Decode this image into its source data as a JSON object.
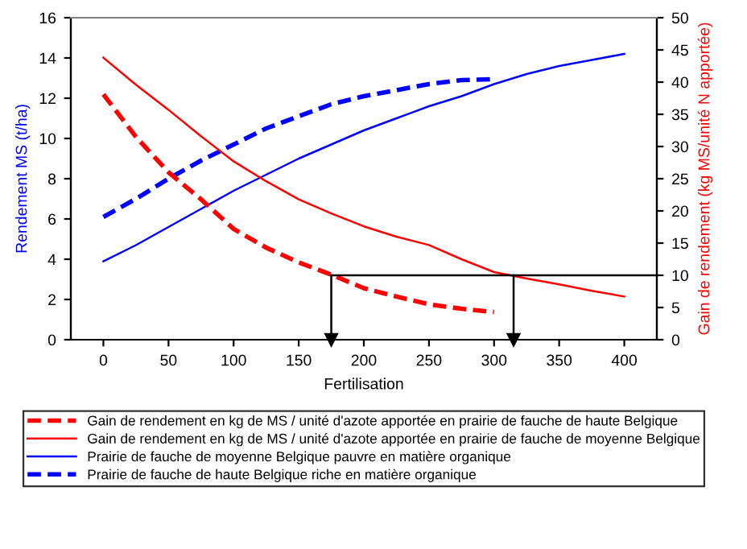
{
  "chart_data": {
    "type": "line",
    "xlabel": "Fertilisation",
    "ylabel": "Rendement MS (t/ha)",
    "y2label": "Gain de rendement (kg MS/unité N apportée)",
    "xlim": [
      -25,
      425
    ],
    "xticks": [
      0,
      50,
      100,
      150,
      200,
      250,
      300,
      350,
      400
    ],
    "ylim": [
      0,
      16
    ],
    "yticks": [
      0,
      2,
      4,
      6,
      8,
      10,
      12,
      14,
      16
    ],
    "y2lim": [
      0,
      50
    ],
    "y2ticks": [
      0,
      5,
      10,
      15,
      20,
      25,
      30,
      35,
      40,
      45,
      50
    ],
    "grid": false,
    "legend": "bottom",
    "marker": "none",
    "series": [
      {
        "name": "Gain de rendement en kg de MS / unité d'azote apportée en prairie de fauche de haute Belgique",
        "color": "#ff0000",
        "axis": "y2",
        "line_style": "dashed",
        "x": [
          0,
          25,
          50,
          75,
          100,
          125,
          150,
          175,
          200,
          225,
          250,
          275,
          300
        ],
        "values": [
          38.1,
          31.5,
          26.0,
          21.8,
          17.2,
          14.3,
          12.0,
          10.1,
          8.0,
          6.7,
          5.5,
          4.8,
          4.3
        ]
      },
      {
        "name": "Gain de rendement en kg de MS / unité d'azote apportée en prairie de fauche de moyenne Belgique",
        "color": "#ff0000",
        "axis": "y2",
        "line_style": "solid",
        "x": [
          0,
          25,
          50,
          75,
          100,
          125,
          150,
          175,
          200,
          225,
          250,
          275,
          300,
          325,
          350,
          375,
          400
        ],
        "values": [
          43.8,
          39.6,
          35.7,
          31.6,
          27.7,
          24.6,
          21.8,
          19.6,
          17.6,
          16.0,
          14.7,
          12.5,
          10.5,
          9.5,
          8.6,
          7.6,
          6.7
        ]
      },
      {
        "name": "Prairie de fauche de moyenne Belgique pauvre en matière organique",
        "color": "#0000ff",
        "axis": "y",
        "line_style": "solid",
        "x": [
          0,
          25,
          50,
          75,
          100,
          125,
          150,
          175,
          200,
          225,
          250,
          275,
          300,
          325,
          350,
          375,
          400
        ],
        "values": [
          3.9,
          4.7,
          5.6,
          6.5,
          7.4,
          8.2,
          9.0,
          9.7,
          10.4,
          11.0,
          11.6,
          12.1,
          12.7,
          13.2,
          13.6,
          13.9,
          14.2
        ]
      },
      {
        "name": "Prairie de fauche de haute Belgique riche en matière organique",
        "color": "#0000ff",
        "axis": "y",
        "line_style": "dashed",
        "x": [
          0,
          25,
          50,
          75,
          100,
          125,
          150,
          175,
          200,
          225,
          250,
          275,
          300
        ],
        "values": [
          6.1,
          7.0,
          8.0,
          8.9,
          9.7,
          10.5,
          11.1,
          11.7,
          12.1,
          12.4,
          12.7,
          12.9,
          12.95
        ]
      }
    ],
    "ref_lines": [
      {
        "axis": "y2",
        "value": 10,
        "color": "#000000"
      },
      {
        "axis": "x",
        "value": 175,
        "color": "#000000"
      },
      {
        "axis": "x",
        "value": 315,
        "color": "#000000"
      }
    ]
  }
}
